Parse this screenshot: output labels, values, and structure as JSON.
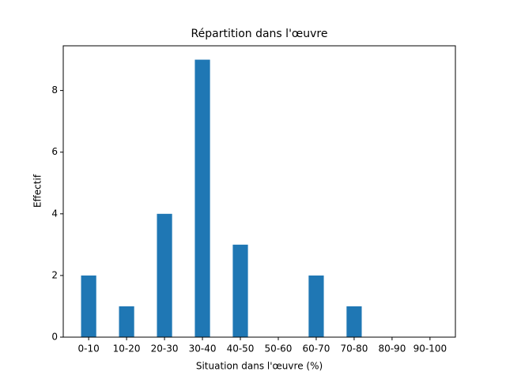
{
  "chart_data": {
    "type": "bar",
    "title": "Répartition dans l'œuvre",
    "x_label": "Situation dans l'œuvre (%)",
    "y_label": "Effectif",
    "categories": [
      "0-10",
      "10-20",
      "20-30",
      "30-40",
      "40-50",
      "50-60",
      "60-70",
      "70-80",
      "80-90",
      "90-100"
    ],
    "values": [
      2,
      1,
      4,
      9,
      3,
      0,
      2,
      1,
      0,
      0
    ],
    "color": "#1f77b4",
    "ylim": [
      0,
      9.45
    ],
    "yticks": [
      0,
      2,
      4,
      6,
      8
    ],
    "grid": false
  }
}
